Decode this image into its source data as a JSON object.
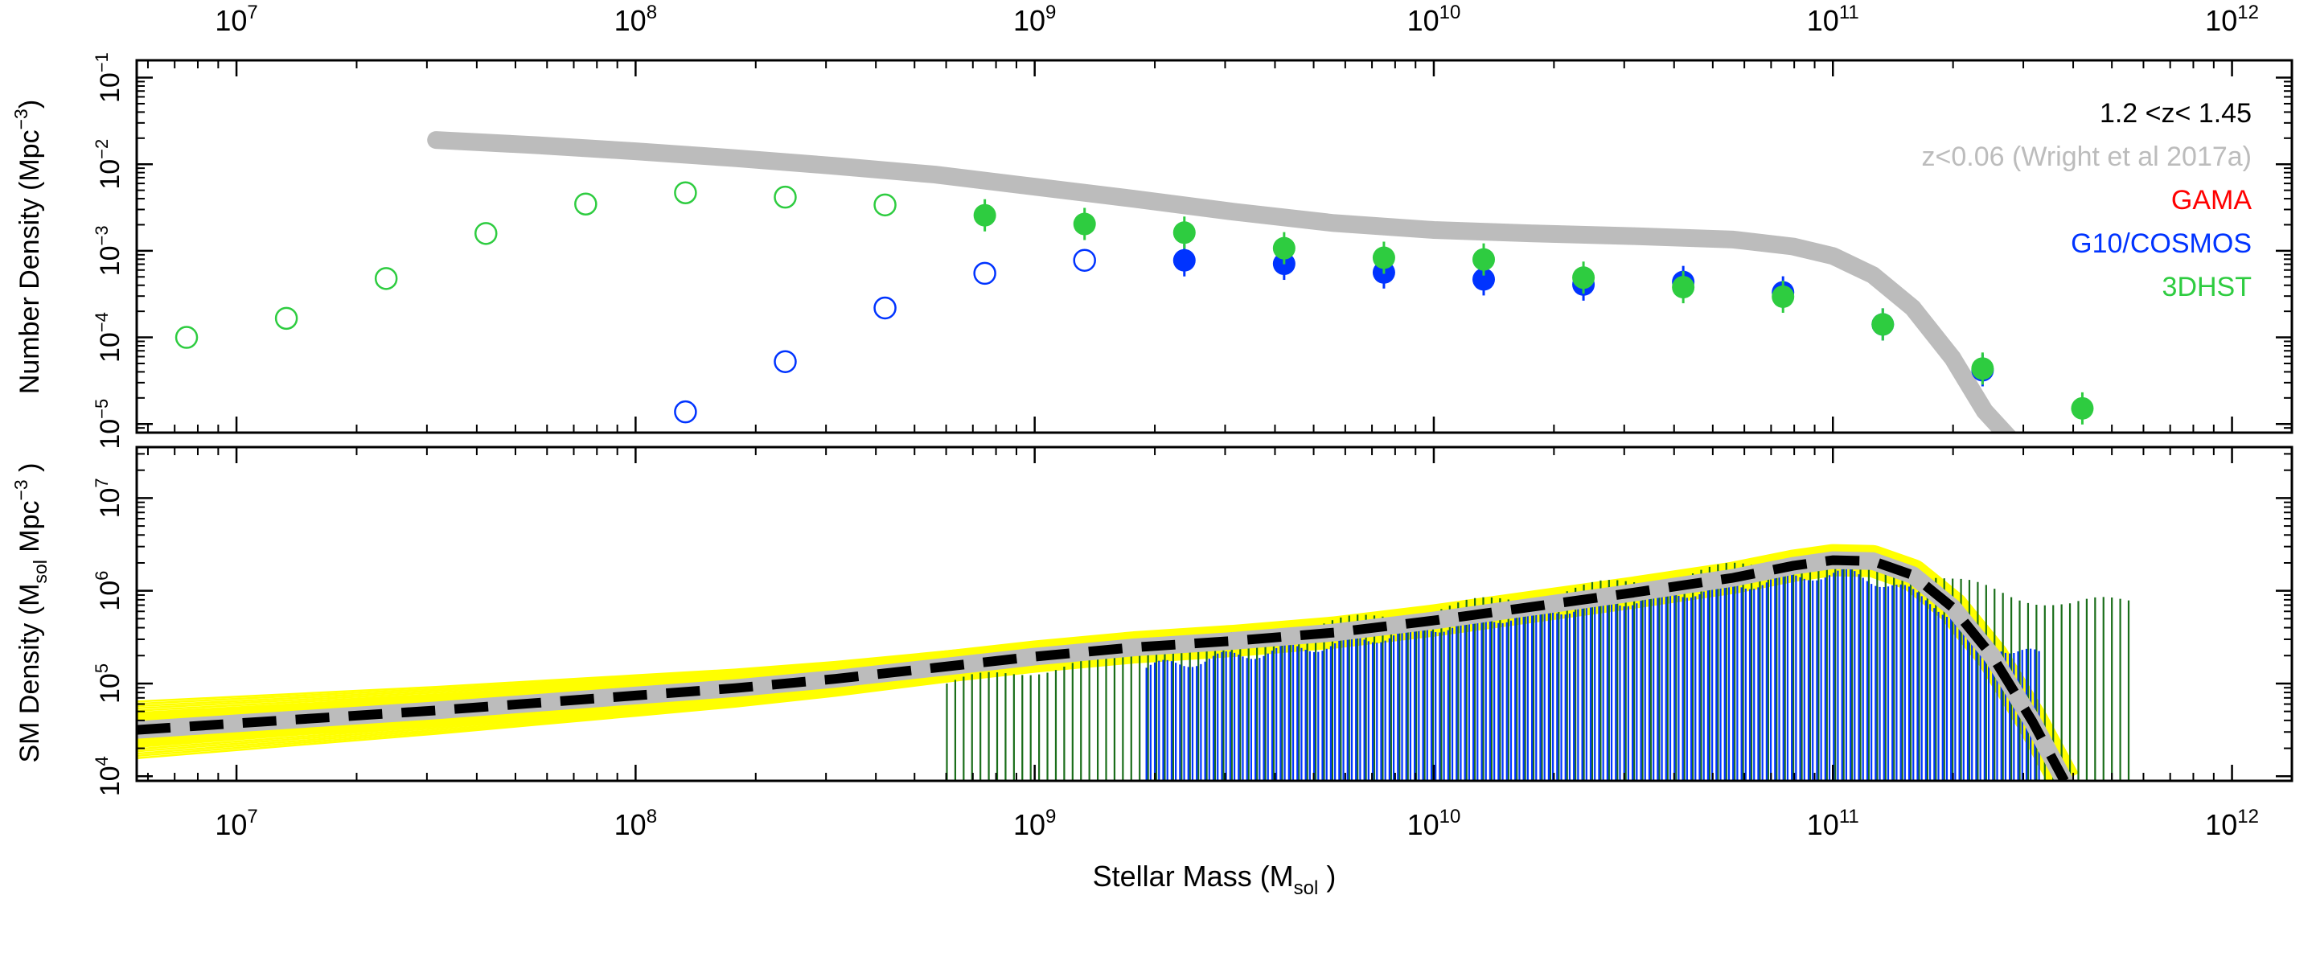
{
  "chart_data": [
    {
      "type": "scatter",
      "panel": "top",
      "ylabel": "Number Density (Mpc",
      "ylabel_sup": "−3",
      "ylabel_end": ")",
      "x_scale": "log",
      "y_scale": "log",
      "xlim_log10": [
        6.75,
        12.15
      ],
      "ylim_log10": [
        -5.1,
        -0.8
      ],
      "x_tick_exponents": [
        7,
        8,
        9,
        10,
        11,
        12
      ],
      "y_tick_exponents": [
        -1,
        -2,
        -3,
        -4,
        -5
      ],
      "legend": {
        "position": "top-right",
        "redshift_label": "1.2 <z< 1.45",
        "entries": [
          {
            "label": "z<0.06 (Wright et al 2017a)",
            "color": "#bcbcbc"
          },
          {
            "label": "GAMA",
            "color": "#ff0000"
          },
          {
            "label": "G10/COSMOS",
            "color": "#0033ff"
          },
          {
            "label": "3DHST",
            "color": "#2ecc40"
          }
        ]
      },
      "series": [
        {
          "name": "z<0.06 (Wright et al 2017a)",
          "kind": "line",
          "color": "#bcbcbc",
          "log_x": [
            7.5,
            7.75,
            8.0,
            8.25,
            8.5,
            8.75,
            9.0,
            9.25,
            9.5,
            9.75,
            10.0,
            10.25,
            10.5,
            10.75,
            10.9,
            11.0,
            11.1,
            11.2,
            11.3,
            11.38,
            11.45
          ],
          "log_y": [
            -1.72,
            -1.78,
            -1.85,
            -1.93,
            -2.02,
            -2.12,
            -2.26,
            -2.4,
            -2.55,
            -2.68,
            -2.76,
            -2.8,
            -2.83,
            -2.87,
            -2.95,
            -3.06,
            -3.28,
            -3.66,
            -4.24,
            -4.85,
            -5.2
          ]
        },
        {
          "name": "G10/COSMOS",
          "kind": "points",
          "color": "#0033ff",
          "log_x": [
            8.125,
            8.375,
            8.625,
            8.875,
            9.125,
            9.375,
            9.625,
            9.875,
            10.125,
            10.375,
            10.625,
            10.875,
            11.125,
            11.375
          ],
          "log_y": [
            -4.86,
            -4.28,
            -3.66,
            -3.26,
            -3.11,
            -3.11,
            -3.15,
            -3.25,
            -3.33,
            -3.39,
            -3.36,
            -3.48,
            -3.85,
            -4.38
          ],
          "filled": [
            false,
            false,
            false,
            false,
            false,
            true,
            true,
            true,
            true,
            true,
            true,
            true,
            true,
            true
          ]
        },
        {
          "name": "3DHST",
          "kind": "points",
          "color": "#2ecc40",
          "log_x": [
            6.875,
            7.125,
            7.375,
            7.625,
            7.875,
            8.125,
            8.375,
            8.625,
            8.875,
            9.125,
            9.375,
            9.625,
            9.875,
            10.125,
            10.375,
            10.625,
            10.875,
            11.125,
            11.375,
            11.625
          ],
          "log_y": [
            -4.0,
            -3.78,
            -3.32,
            -2.8,
            -2.46,
            -2.33,
            -2.38,
            -2.47,
            -2.59,
            -2.69,
            -2.79,
            -2.97,
            -3.08,
            -3.1,
            -3.31,
            -3.42,
            -3.53,
            -3.85,
            -4.36,
            -4.82
          ],
          "filled": [
            false,
            false,
            false,
            false,
            false,
            false,
            false,
            false,
            true,
            true,
            true,
            true,
            true,
            true,
            true,
            true,
            true,
            true,
            true,
            true
          ]
        }
      ]
    },
    {
      "type": "bar",
      "panel": "bottom",
      "xlabel": "Stellar Mass (M",
      "xlabel_sub": "sol",
      "xlabel_end": " )",
      "ylabel": "SM Density (M",
      "ylabel_sub": "sol",
      "ylabel_mid": " Mpc",
      "ylabel_sup": "−3",
      "ylabel_end": " )",
      "x_scale": "log",
      "y_scale": "log",
      "xlim_log10": [
        6.75,
        12.15
      ],
      "ylim_log10": [
        3.95,
        7.55
      ],
      "x_tick_exponents": [
        7,
        8,
        9,
        10,
        11,
        12
      ],
      "y_tick_exponents": [
        4,
        5,
        6,
        7
      ],
      "colors": {
        "fit_samples": "#ffff00",
        "reference": "#bcbcbc",
        "best_fit": "#000000",
        "bars_cosmos": "#0033ff",
        "bars_3dhst": "#1a6e1a"
      },
      "best_fit": {
        "log_x": [
          6.75,
          7.0,
          7.25,
          7.5,
          7.75,
          8.0,
          8.25,
          8.5,
          8.75,
          9.0,
          9.25,
          9.5,
          9.75,
          10.0,
          10.25,
          10.5,
          10.75,
          10.9,
          11.0,
          11.1,
          11.2,
          11.3,
          11.4,
          11.5,
          11.58
        ],
        "log_y": [
          4.5,
          4.57,
          4.64,
          4.71,
          4.79,
          4.87,
          4.95,
          5.05,
          5.17,
          5.29,
          5.39,
          5.46,
          5.55,
          5.68,
          5.83,
          5.98,
          6.14,
          6.27,
          6.33,
          6.32,
          6.17,
          5.82,
          5.29,
          4.59,
          3.95
        ]
      },
      "bars": [
        {
          "name": "G10/COSMOS",
          "log_x_start": 9.28,
          "log_x_end": 11.52,
          "log_x_step": 0.0105,
          "log_y_at": [
            [
              9.28,
              5.17
            ],
            [
              9.5,
              5.3
            ],
            [
              9.75,
              5.42
            ],
            [
              10.0,
              5.6
            ],
            [
              10.25,
              5.76
            ],
            [
              10.5,
              5.9
            ],
            [
              10.75,
              6.05
            ],
            [
              10.95,
              6.17
            ],
            [
              11.05,
              6.18
            ],
            [
              11.15,
              6.06
            ],
            [
              11.25,
              5.88
            ],
            [
              11.35,
              5.55
            ],
            [
              11.45,
              5.35
            ],
            [
              11.52,
              5.3
            ]
          ]
        },
        {
          "name": "3DHST",
          "log_x_start": 8.78,
          "log_x_end": 11.75,
          "log_x_step": 0.021,
          "log_y_at": [
            [
              8.78,
              5.0
            ],
            [
              9.0,
              5.15
            ],
            [
              9.28,
              5.35
            ],
            [
              9.5,
              5.5
            ],
            [
              9.75,
              5.65
            ],
            [
              10.0,
              5.8
            ],
            [
              10.25,
              5.95
            ],
            [
              10.5,
              6.1
            ],
            [
              10.75,
              6.25
            ],
            [
              11.0,
              6.35
            ],
            [
              11.15,
              6.3
            ],
            [
              11.3,
              6.1
            ],
            [
              11.45,
              5.95
            ],
            [
              11.6,
              5.85
            ],
            [
              11.75,
              5.9
            ]
          ]
        }
      ]
    }
  ]
}
